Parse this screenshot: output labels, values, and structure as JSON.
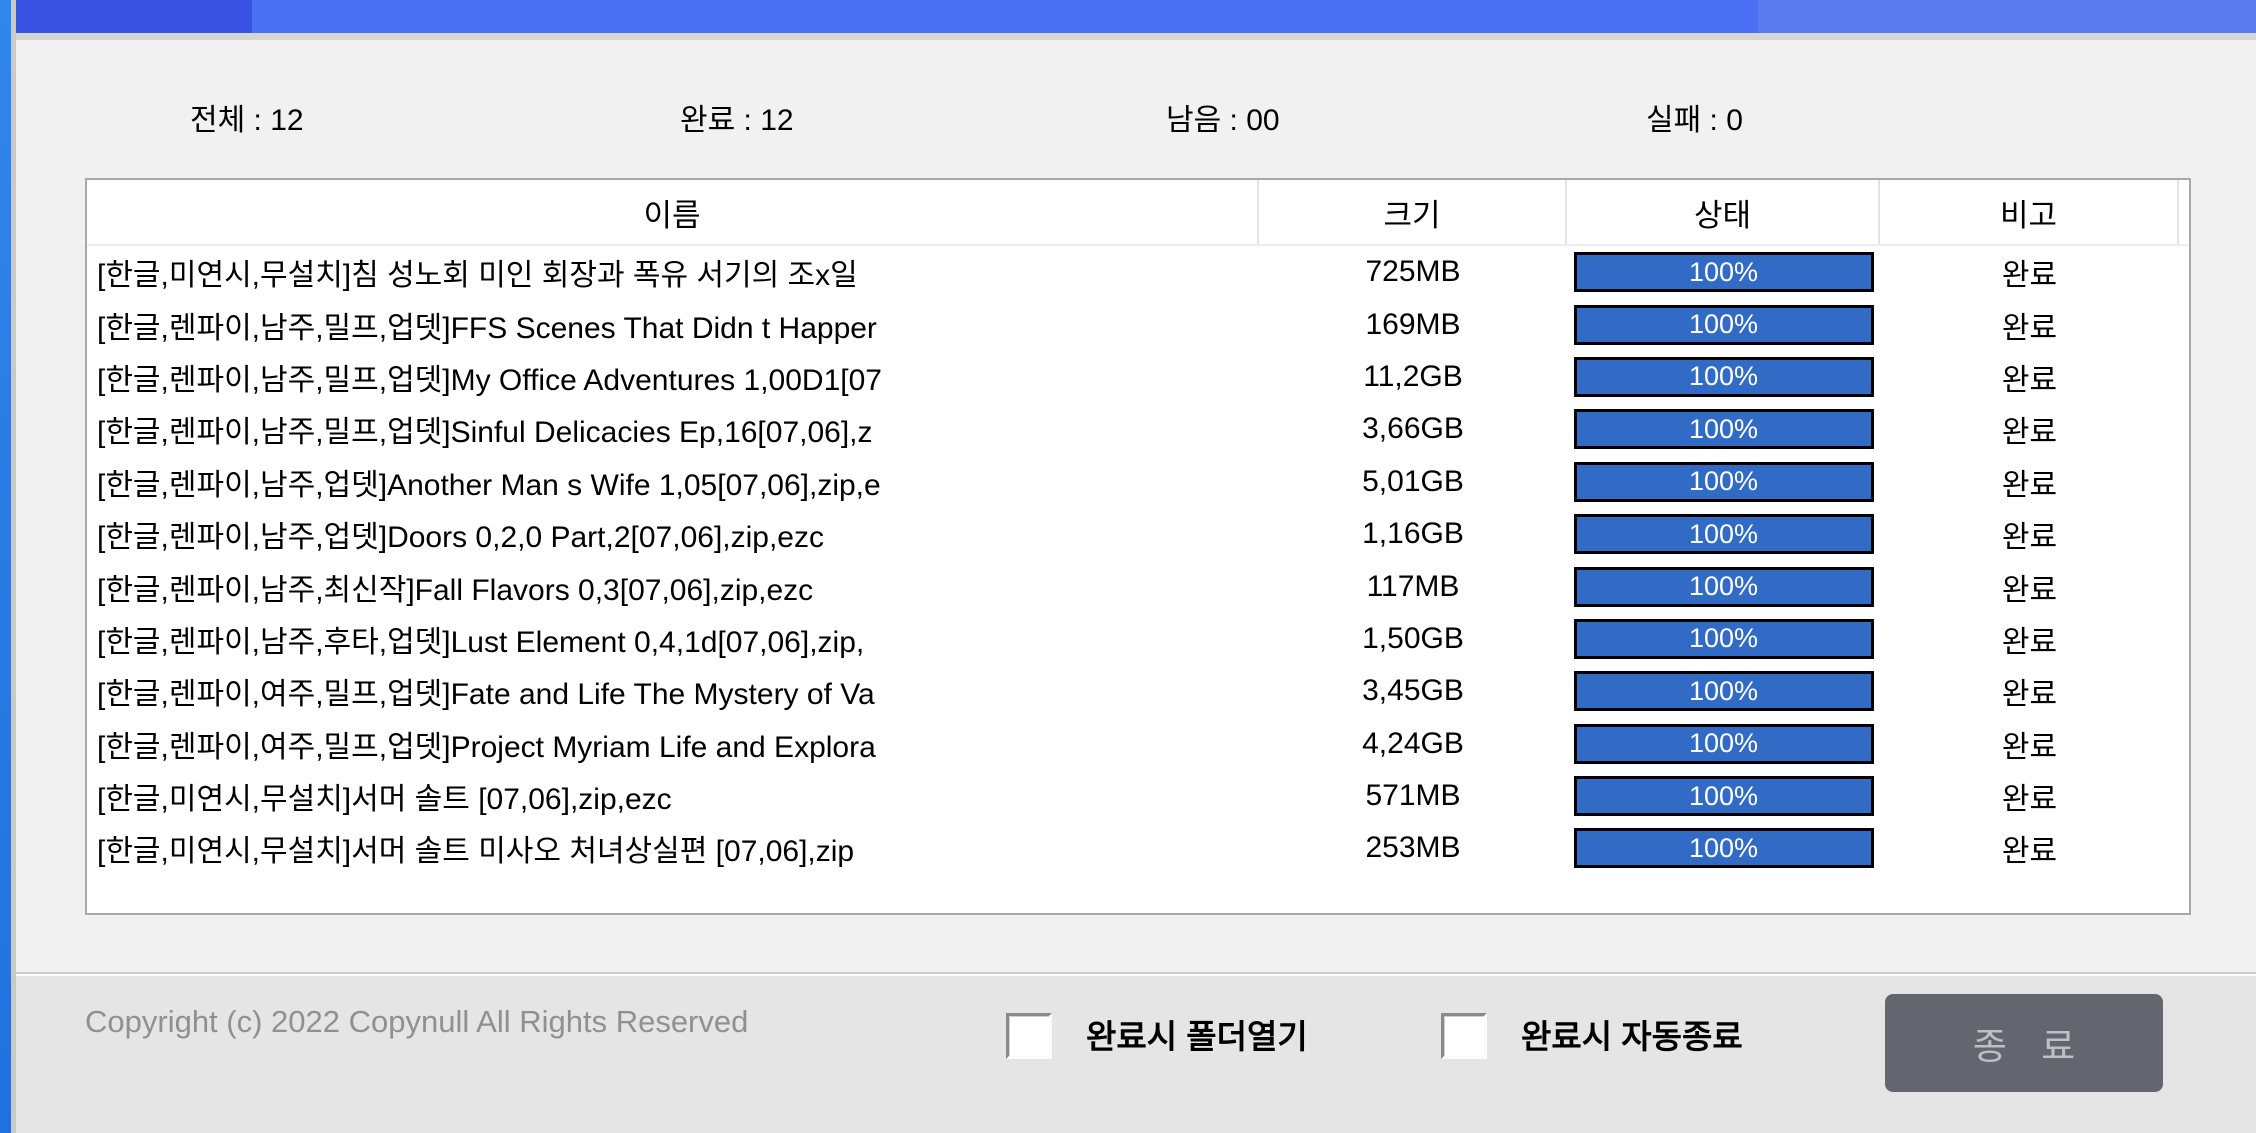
{
  "window": {
    "stats": {
      "total": "전체 : 12",
      "done": "완료 : 12",
      "remain": "남음 : 00",
      "failed": "실패 : 0"
    },
    "table": {
      "columns": {
        "name": "이름",
        "size": "크기",
        "status": "상태",
        "remark": "비고"
      },
      "rows": [
        {
          "name": "[한글,미연시,무설치]침 성노회 미인 회장과 폭유 서기의 조x일",
          "size": "725MB",
          "progress": "100%",
          "remark": "완료"
        },
        {
          "name": "[한글,렌파이,남주,밀프,업뎃]FFS Scenes That Didn t Happer",
          "size": "169MB",
          "progress": "100%",
          "remark": "완료"
        },
        {
          "name": "[한글,렌파이,남주,밀프,업뎃]My Office Adventures 1,00D1[07",
          "size": "11,2GB",
          "progress": "100%",
          "remark": "완료"
        },
        {
          "name": "[한글,렌파이,남주,밀프,업뎃]Sinful Delicacies Ep,16[07,06],z",
          "size": "3,66GB",
          "progress": "100%",
          "remark": "완료"
        },
        {
          "name": "[한글,렌파이,남주,업뎃]Another Man s Wife 1,05[07,06],zip,e",
          "size": "5,01GB",
          "progress": "100%",
          "remark": "완료"
        },
        {
          "name": "[한글,렌파이,남주,업뎃]Doors 0,2,0 Part,2[07,06],zip,ezc",
          "size": "1,16GB",
          "progress": "100%",
          "remark": "완료"
        },
        {
          "name": "[한글,렌파이,남주,최신작]Fall Flavors 0,3[07,06],zip,ezc",
          "size": "117MB",
          "progress": "100%",
          "remark": "완료"
        },
        {
          "name": "[한글,렌파이,남주,후타,업뎃]Lust Element 0,4,1d[07,06],zip,",
          "size": "1,50GB",
          "progress": "100%",
          "remark": "완료"
        },
        {
          "name": "[한글,렌파이,여주,밀프,업뎃]Fate and Life The Mystery of Va",
          "size": "3,45GB",
          "progress": "100%",
          "remark": "완료"
        },
        {
          "name": "[한글,렌파이,여주,밀프,업뎃]Project Myriam Life and Explora",
          "size": "4,24GB",
          "progress": "100%",
          "remark": "완료"
        },
        {
          "name": "[한글,미연시,무설치]서머 솔트 [07,06],zip,ezc",
          "size": "571MB",
          "progress": "100%",
          "remark": "완료"
        },
        {
          "name": "[한글,미연시,무설치]서머 솔트 미사오 처녀상실편 [07,06],zip",
          "size": "253MB",
          "progress": "100%",
          "remark": "완료"
        }
      ]
    },
    "footer": {
      "copyright": "Copyright (c) 2022 Copynull All Rights Reserved",
      "checkbox_open_folder_label": "완료시 폴더열기",
      "checkbox_auto_exit_label": "완료시 자동종료",
      "exit_button_label": "종 료"
    },
    "colors": {
      "title_bar_dark": "#3a52e2",
      "title_bar_medium": "#4a6ff2",
      "title_bar_light": "#5b7cf1",
      "left_edge_blue": "#2379e6",
      "progress_bar_fill": "#326bc5",
      "exit_button_bg": "#65656f",
      "panel_bg": "#e5e5e5",
      "content_bg": "#f1f1f1"
    }
  }
}
